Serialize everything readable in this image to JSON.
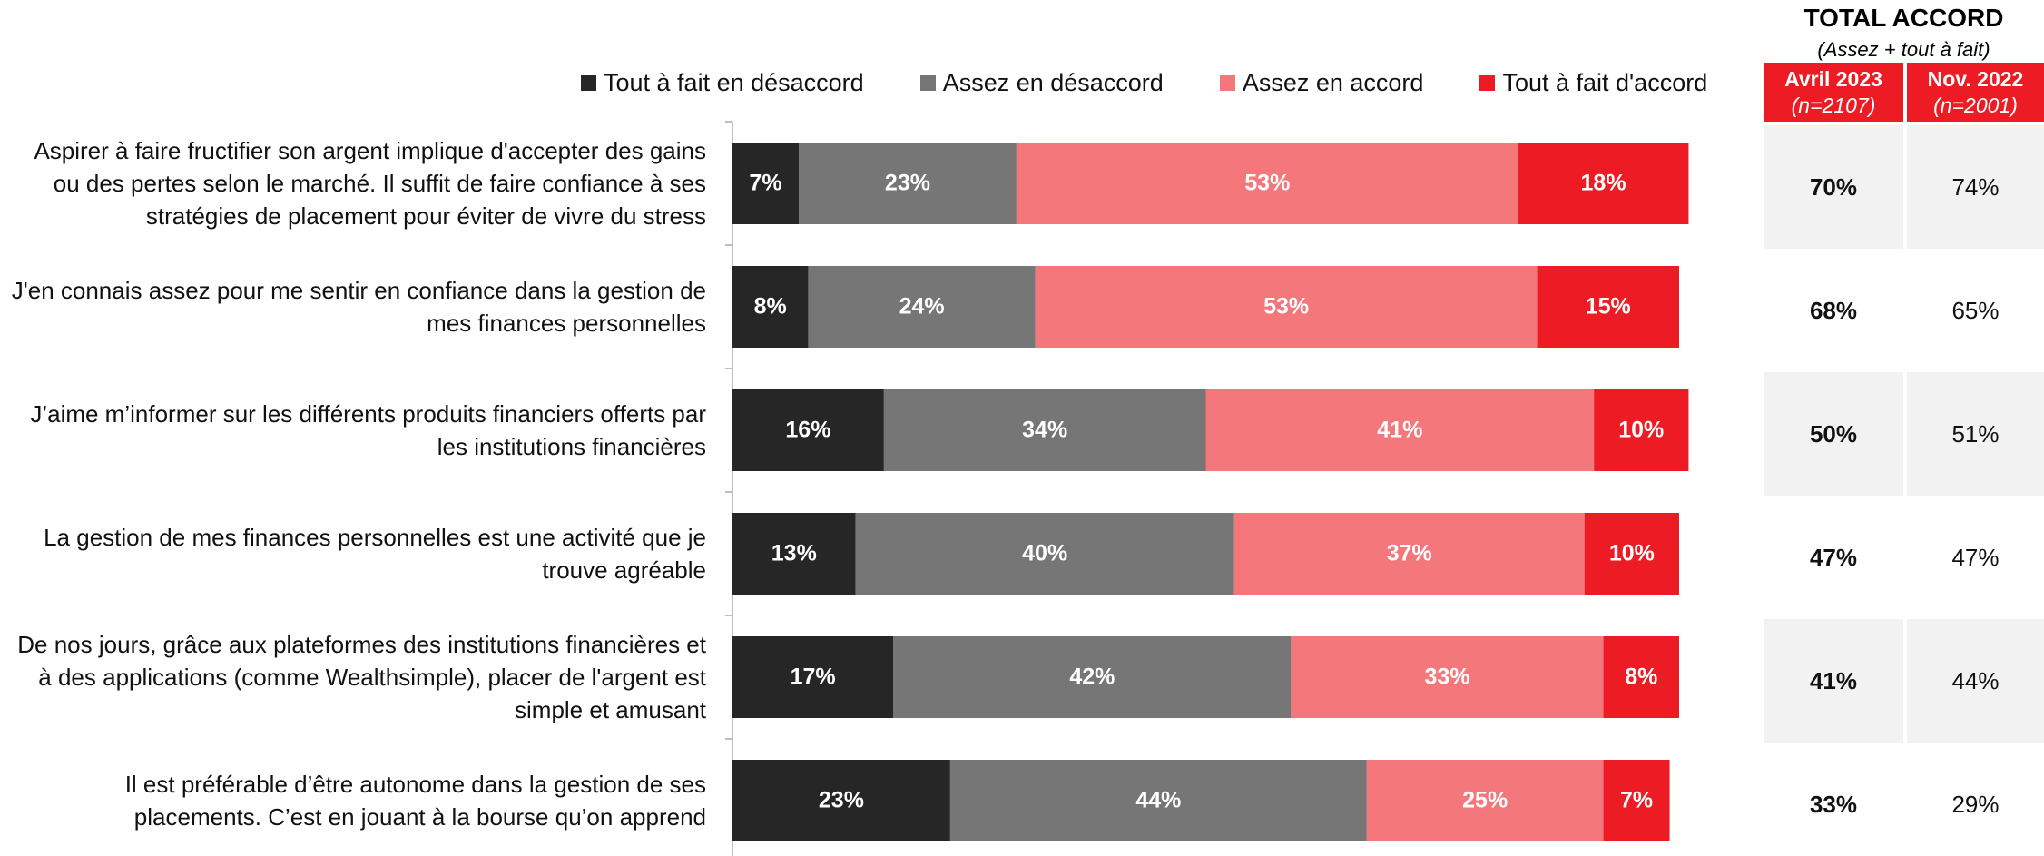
{
  "chart_data": {
    "type": "stacked_bar_horizontal",
    "categories": [
      "Aspirer à faire fructifier son argent implique d'accepter des gains ou des pertes selon le marché. Il suffit de faire confiance à ses stratégies de placement pour éviter de vivre du stress",
      "J'en connais assez pour me sentir en confiance dans la gestion de mes finances personnelles",
      "J’aime m’informer sur les différents produits financiers offerts par les institutions financières",
      "La gestion de mes finances personnelles est une activité que je trouve agréable",
      "De nos jours, grâce aux plateformes des institutions financières et à des applications (comme Wealthsimple), placer de l'argent est simple et amusant",
      "Il est préférable d’être autonome dans la gestion de ses placements. C’est en jouant à la bourse qu’on apprend"
    ],
    "series": [
      {
        "name": "Tout à fait en désaccord",
        "color": "#262626",
        "values": [
          7,
          8,
          16,
          13,
          17,
          23
        ],
        "value_labels": [
          "7%",
          "8%",
          "16%",
          "13%",
          "17%",
          "23%"
        ]
      },
      {
        "name": "Assez en désaccord",
        "color": "#767676",
        "values": [
          23,
          24,
          34,
          40,
          42,
          44
        ],
        "value_labels": [
          "23%",
          "24%",
          "34%",
          "40%",
          "42%",
          "44%"
        ]
      },
      {
        "name": "Assez en accord",
        "color": "#f4777b",
        "values": [
          53,
          53,
          41,
          37,
          33,
          25
        ],
        "value_labels": [
          "53%",
          "53%",
          "41%",
          "37%",
          "33%",
          "25%"
        ]
      },
      {
        "name": "Tout à fait d'accord",
        "color": "#ed1c24",
        "values": [
          18,
          15,
          10,
          10,
          8,
          7
        ],
        "value_labels": [
          "18%",
          "15%",
          "10%",
          "10%",
          "8%",
          "7%"
        ]
      }
    ],
    "xlim": [
      0,
      100
    ],
    "totals": {
      "title": "TOTAL ACCORD",
      "subtitle": "(Assez +  tout à fait)",
      "columns": [
        {
          "name": "Avril 2023",
          "n": "(n=2107)",
          "values": [
            "70%",
            "68%",
            "50%",
            "47%",
            "41%",
            "33%"
          ]
        },
        {
          "name": "Nov. 2022",
          "n": "(n=2001)",
          "values": [
            "74%",
            "65%",
            "51%",
            "47%",
            "44%",
            "29%"
          ]
        }
      ]
    }
  }
}
